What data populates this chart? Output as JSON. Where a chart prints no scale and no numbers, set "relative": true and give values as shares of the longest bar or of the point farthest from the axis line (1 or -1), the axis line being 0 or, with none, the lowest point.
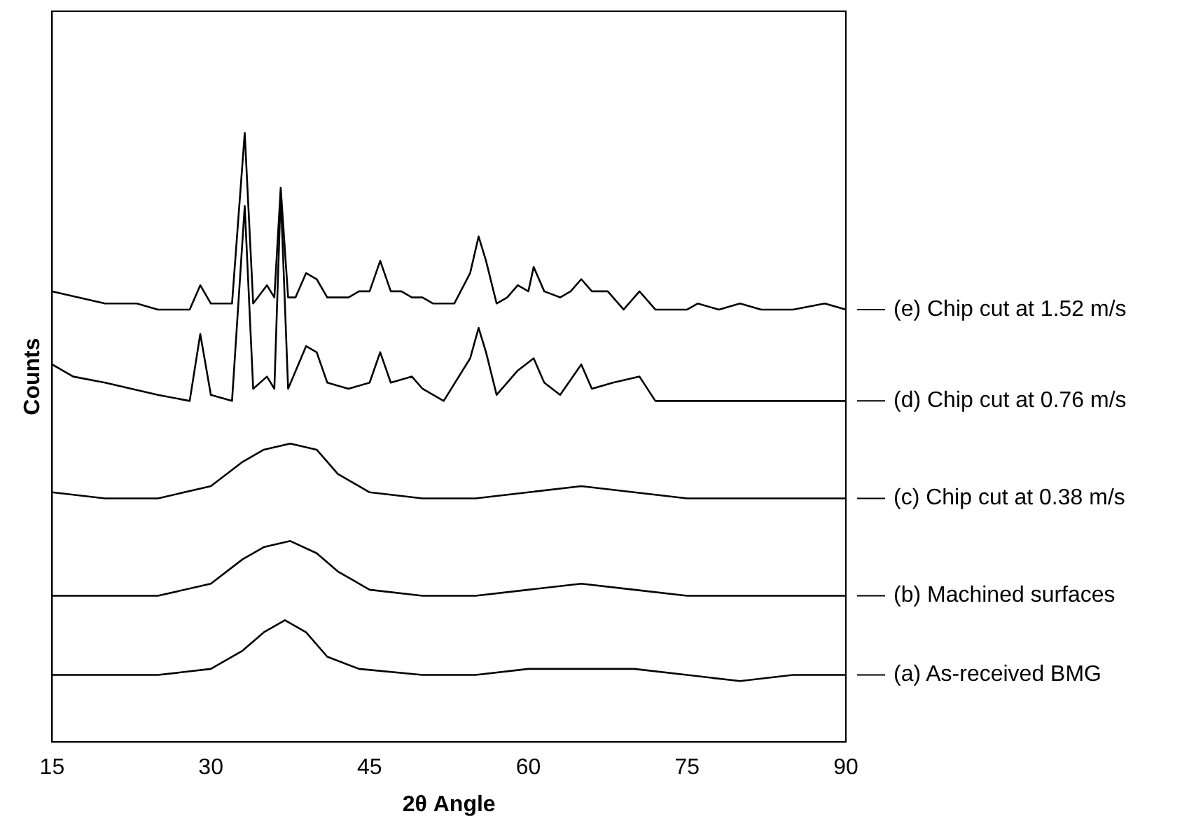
{
  "chart_data": {
    "type": "line",
    "xlabel": "2θ Angle",
    "ylabel": "Counts",
    "relative": true,
    "xlim": [
      15,
      90
    ],
    "xticks": [
      15,
      30,
      45,
      60,
      75,
      90
    ],
    "grid": false,
    "legend": "right",
    "marker": "none",
    "line_style": "solid",
    "series": [
      {
        "name": "(e) Chip cut at 1.52 m/s",
        "color": "#000000",
        "x": [
          15,
          20,
          22,
          23,
          25,
          28,
          29,
          30,
          32,
          33.2,
          34,
          35.3,
          36,
          36.6,
          37.3,
          38,
          39,
          40,
          41,
          43,
          44,
          45,
          46,
          47,
          48,
          49,
          50,
          51,
          53,
          54.5,
          55.3,
          56,
          57,
          58,
          59,
          60,
          60.5,
          61.5,
          63,
          64,
          65,
          66,
          67.5,
          69,
          70.5,
          72,
          75,
          76,
          78,
          80,
          82,
          85,
          88,
          90
        ],
        "values": [
          0.74,
          0.72,
          0.72,
          0.72,
          0.71,
          0.71,
          0.75,
          0.72,
          0.72,
          1.0,
          0.72,
          0.75,
          0.73,
          0.91,
          0.73,
          0.73,
          0.77,
          0.76,
          0.73,
          0.73,
          0.74,
          0.74,
          0.79,
          0.74,
          0.74,
          0.73,
          0.73,
          0.72,
          0.72,
          0.77,
          0.83,
          0.79,
          0.72,
          0.73,
          0.75,
          0.74,
          0.78,
          0.74,
          0.73,
          0.74,
          0.76,
          0.74,
          0.74,
          0.71,
          0.74,
          0.71,
          0.71,
          0.72,
          0.71,
          0.72,
          0.71,
          0.71,
          0.72,
          0.71
        ]
      },
      {
        "name": "(d) Chip cut at 0.76 m/s",
        "color": "#000000",
        "x": [
          15,
          17,
          20,
          25,
          28,
          29,
          30,
          32,
          33.2,
          34,
          35.3,
          36,
          36.6,
          37.3,
          39,
          40,
          41,
          43,
          45,
          46,
          47,
          49,
          50,
          52,
          54.5,
          55.3,
          56,
          57,
          59,
          60.5,
          61.5,
          63,
          65,
          66,
          68,
          70.5,
          72,
          75,
          80,
          85,
          90
        ],
        "values": [
          0.62,
          0.6,
          0.59,
          0.57,
          0.56,
          0.67,
          0.57,
          0.56,
          0.88,
          0.58,
          0.6,
          0.58,
          0.9,
          0.58,
          0.65,
          0.64,
          0.59,
          0.58,
          0.59,
          0.64,
          0.59,
          0.6,
          0.58,
          0.56,
          0.63,
          0.68,
          0.64,
          0.57,
          0.61,
          0.63,
          0.59,
          0.57,
          0.62,
          0.58,
          0.59,
          0.6,
          0.56,
          0.56,
          0.56,
          0.56,
          0.56
        ]
      },
      {
        "name": "(c) Chip cut at 0.38 m/s",
        "color": "#000000",
        "x": [
          15,
          20,
          25,
          30,
          33,
          35,
          37.5,
          40,
          42,
          45,
          50,
          55,
          60,
          65,
          70,
          75,
          80,
          85,
          90
        ],
        "values": [
          0.41,
          0.4,
          0.4,
          0.42,
          0.46,
          0.48,
          0.49,
          0.48,
          0.44,
          0.41,
          0.4,
          0.4,
          0.41,
          0.42,
          0.41,
          0.4,
          0.4,
          0.4,
          0.4
        ]
      },
      {
        "name": "(b) Machined surfaces",
        "color": "#000000",
        "x": [
          15,
          20,
          25,
          30,
          33,
          35,
          37.5,
          40,
          42,
          45,
          50,
          55,
          60,
          65,
          70,
          75,
          80,
          85,
          90
        ],
        "values": [
          0.24,
          0.24,
          0.24,
          0.26,
          0.3,
          0.32,
          0.33,
          0.31,
          0.28,
          0.25,
          0.24,
          0.24,
          0.25,
          0.26,
          0.25,
          0.24,
          0.24,
          0.24,
          0.24
        ]
      },
      {
        "name": "(a) As-received BMG",
        "color": "#000000",
        "x": [
          15,
          20,
          25,
          30,
          33,
          35,
          37,
          39,
          41,
          44,
          50,
          55,
          60,
          65,
          70,
          75,
          80,
          85,
          90
        ],
        "values": [
          0.11,
          0.11,
          0.11,
          0.12,
          0.15,
          0.18,
          0.2,
          0.18,
          0.14,
          0.12,
          0.11,
          0.11,
          0.12,
          0.12,
          0.12,
          0.11,
          0.1,
          0.11,
          0.11
        ]
      }
    ]
  }
}
